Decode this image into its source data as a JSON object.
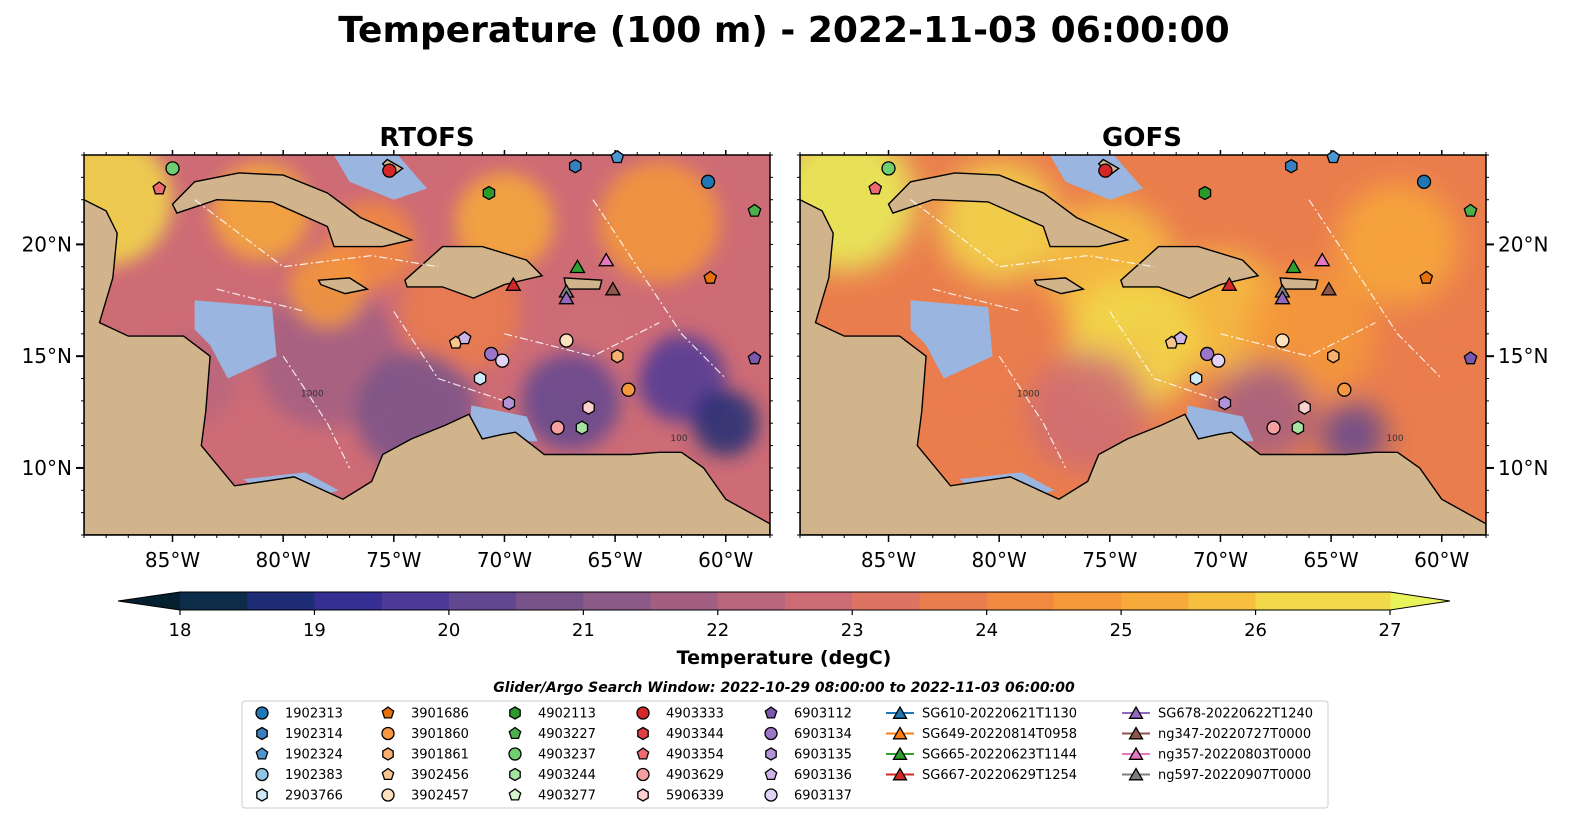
{
  "title": "Temperature (100 m) - 2022-11-03 06:00:00",
  "colors": {
    "land": "#d2b48c",
    "water_shallow": "#9ab6e0",
    "deep_dark": "#04202e",
    "colormap": [
      "#04202e",
      "#0d2c4a",
      "#1f2d76",
      "#352f93",
      "#4c3a96",
      "#624891",
      "#785389",
      "#8c5a86",
      "#a25f82",
      "#b9667d",
      "#ce6c76",
      "#de7362",
      "#ea7d4d",
      "#f18a40",
      "#f5993b",
      "#f7a93a",
      "#f6c03e",
      "#f2d94a",
      "#e8f25a"
    ]
  },
  "chart_data": [
    {
      "type": "heatmap",
      "title": "RTOFS",
      "variable": "Temperature (100 m)",
      "x_ticks": [
        "85°W",
        "80°W",
        "75°W",
        "70°W",
        "65°W",
        "60°W"
      ],
      "y_ticks": [
        "20°N",
        "15°N",
        "10°N"
      ],
      "xlim": [
        -89,
        -58
      ],
      "ylim": [
        7,
        24
      ],
      "contour_labels": [
        "1000",
        "100"
      ],
      "colormap_range": [
        18,
        27
      ]
    },
    {
      "type": "heatmap",
      "title": "GOFS",
      "variable": "Temperature (100 m)",
      "x_ticks": [
        "85°W",
        "80°W",
        "75°W",
        "70°W",
        "65°W",
        "60°W"
      ],
      "y_ticks": [
        "20°N",
        "15°N",
        "10°N"
      ],
      "xlim": [
        -89,
        -58
      ],
      "ylim": [
        7,
        24
      ],
      "contour_labels": [
        "1000",
        "100"
      ],
      "colormap_range": [
        18,
        27
      ]
    }
  ],
  "colorbar": {
    "label": "Temperature (degC)",
    "ticks": [
      "18",
      "19",
      "20",
      "21",
      "22",
      "23",
      "24",
      "25",
      "26",
      "27"
    ],
    "min": 18,
    "max": 27,
    "extend": "both"
  },
  "search_window": "Glider/Argo Search Window: 2022-10-29 08:00:00 to 2022-11-03 06:00:00",
  "legend": {
    "columns": [
      [
        {
          "label": "1902313",
          "marker": "circle",
          "color": "#1f77b4"
        },
        {
          "label": "1902314",
          "marker": "hexagon",
          "color": "#3a7fc0"
        },
        {
          "label": "1902324",
          "marker": "pentagon",
          "color": "#4f95d0"
        },
        {
          "label": "1902383",
          "marker": "circle",
          "color": "#8fc3e8"
        },
        {
          "label": "2903766",
          "marker": "hexagon",
          "color": "#cfe8f7"
        }
      ],
      [
        {
          "label": "3901686",
          "marker": "pentagon",
          "color": "#e6700c"
        },
        {
          "label": "3901860",
          "marker": "circle",
          "color": "#f59840"
        },
        {
          "label": "3901861",
          "marker": "hexagon",
          "color": "#f8b070"
        },
        {
          "label": "3902456",
          "marker": "pentagon",
          "color": "#f9c690"
        },
        {
          "label": "3902457",
          "marker": "circle",
          "color": "#fde0bd"
        }
      ],
      [
        {
          "label": "4902113",
          "marker": "hexagon",
          "color": "#2a9a2a"
        },
        {
          "label": "4903227",
          "marker": "pentagon",
          "color": "#4bb04b"
        },
        {
          "label": "4903237",
          "marker": "circle",
          "color": "#6fcf6f"
        },
        {
          "label": "4903244",
          "marker": "hexagon",
          "color": "#a6e3a0"
        },
        {
          "label": "4903277",
          "marker": "pentagon",
          "color": "#d4f5cc"
        }
      ],
      [
        {
          "label": "4903333",
          "marker": "circle",
          "color": "#d62728"
        },
        {
          "label": "4903344",
          "marker": "hexagon",
          "color": "#e04045"
        },
        {
          "label": "4903354",
          "marker": "pentagon",
          "color": "#ee6a70"
        },
        {
          "label": "4903629",
          "marker": "circle",
          "color": "#f5a0a0"
        },
        {
          "label": "5906339",
          "marker": "hexagon",
          "color": "#fbd0cf"
        }
      ],
      [
        {
          "label": "6903112",
          "marker": "pentagon",
          "color": "#7b58b0"
        },
        {
          "label": "6903134",
          "marker": "circle",
          "color": "#9a75c8"
        },
        {
          "label": "6903135",
          "marker": "hexagon",
          "color": "#b394d8"
        },
        {
          "label": "6903136",
          "marker": "pentagon",
          "color": "#ccb4e6"
        },
        {
          "label": "6903137",
          "marker": "circle",
          "color": "#e2d2f3"
        }
      ],
      [
        {
          "label": "SG610-20220621T1130",
          "marker": "triangle",
          "color": "#1f77b4"
        },
        {
          "label": "SG649-20220814T0958",
          "marker": "triangle",
          "color": "#ff7f0e"
        },
        {
          "label": "SG665-20220623T1144",
          "marker": "triangle",
          "color": "#2ca02c"
        },
        {
          "label": "SG667-20220629T1254",
          "marker": "triangle",
          "color": "#d62728"
        }
      ],
      [
        {
          "label": "SG678-20220622T1240",
          "marker": "triangle",
          "color": "#9467bd"
        },
        {
          "label": "ng347-20220727T0000",
          "marker": "triangle",
          "color": "#8c564b"
        },
        {
          "label": "ng357-20220803T0000",
          "marker": "triangle",
          "color": "#e377c2"
        },
        {
          "label": "ng597-20220907T0000",
          "marker": "triangle",
          "color": "#7f7f7f"
        }
      ]
    ]
  },
  "platforms": [
    {
      "id": "4903237",
      "marker": "circle",
      "color": "#6fcf6f",
      "lon": -85.0,
      "lat": 23.4
    },
    {
      "id": "4903354",
      "marker": "pentagon",
      "color": "#ee6a70",
      "lon": -85.6,
      "lat": 22.5
    },
    {
      "id": "4903333",
      "marker": "circle",
      "color": "#d62728",
      "lon": -75.2,
      "lat": 23.3
    },
    {
      "id": "4902113",
      "marker": "hexagon",
      "color": "#2a9a2a",
      "lon": -70.7,
      "lat": 22.3
    },
    {
      "id": "1902314",
      "marker": "hexagon",
      "color": "#3a7fc0",
      "lon": -66.8,
      "lat": 23.5
    },
    {
      "id": "1902324",
      "marker": "pentagon",
      "color": "#4f95d0",
      "lon": -64.9,
      "lat": 23.9
    },
    {
      "id": "1902313",
      "marker": "circle",
      "color": "#1f77b4",
      "lon": -60.8,
      "lat": 22.8
    },
    {
      "id": "4903227",
      "marker": "pentagon",
      "color": "#4bb04b",
      "lon": -58.7,
      "lat": 21.5
    },
    {
      "id": "3901686",
      "marker": "pentagon",
      "color": "#e6700c",
      "lon": -60.7,
      "lat": 18.5
    },
    {
      "id": "3902456",
      "marker": "pentagon",
      "color": "#f9c690",
      "lon": -72.2,
      "lat": 15.6
    },
    {
      "id": "6903136",
      "marker": "pentagon",
      "color": "#ccb4e6",
      "lon": -71.8,
      "lat": 15.8
    },
    {
      "id": "3902457",
      "marker": "circle",
      "color": "#fde0bd",
      "lon": -67.2,
      "lat": 15.7
    },
    {
      "id": "6903134",
      "marker": "circle",
      "color": "#9a75c8",
      "lon": -70.6,
      "lat": 15.1
    },
    {
      "id": "6903137",
      "marker": "circle",
      "color": "#e2d2f3",
      "lon": -70.1,
      "lat": 14.8
    },
    {
      "id": "2903766",
      "marker": "hexagon",
      "color": "#cfe8f7",
      "lon": -71.1,
      "lat": 14.0
    },
    {
      "id": "3901861",
      "marker": "hexagon",
      "color": "#f8b070",
      "lon": -64.9,
      "lat": 15.0
    },
    {
      "id": "3901860",
      "marker": "circle",
      "color": "#f59840",
      "lon": -64.4,
      "lat": 13.5
    },
    {
      "id": "6903112",
      "marker": "pentagon",
      "color": "#7b58b0",
      "lon": -58.7,
      "lat": 14.9
    },
    {
      "id": "6903135",
      "marker": "hexagon",
      "color": "#b394d8",
      "lon": -69.8,
      "lat": 12.9
    },
    {
      "id": "5906339",
      "marker": "hexagon",
      "color": "#fbd0cf",
      "lon": -66.2,
      "lat": 12.7
    },
    {
      "id": "4903629",
      "marker": "circle",
      "color": "#f5a0a0",
      "lon": -67.6,
      "lat": 11.8
    },
    {
      "id": "4903244",
      "marker": "hexagon",
      "color": "#a6e3a0",
      "lon": -66.5,
      "lat": 11.8
    },
    {
      "id": "SG665-20220623T1144",
      "marker": "triangle",
      "color": "#2ca02c",
      "lon": -66.7,
      "lat": 19.0
    },
    {
      "id": "ng357-20220803T0000",
      "marker": "triangle",
      "color": "#e377c2",
      "lon": -65.4,
      "lat": 19.3
    },
    {
      "id": "SG667-20220629T1254",
      "marker": "triangle",
      "color": "#d62728",
      "lon": -69.6,
      "lat": 18.2
    },
    {
      "id": "ng347-20220727T0000",
      "marker": "triangle",
      "color": "#8c564b",
      "lon": -65.1,
      "lat": 18.0
    },
    {
      "id": "ng597-20220907T0000",
      "marker": "triangle",
      "color": "#7f7f7f",
      "lon": -67.2,
      "lat": 17.9
    },
    {
      "id": "SG678-20220622T1240",
      "marker": "triangle",
      "color": "#9467bd",
      "lon": -67.2,
      "lat": 17.6
    }
  ]
}
